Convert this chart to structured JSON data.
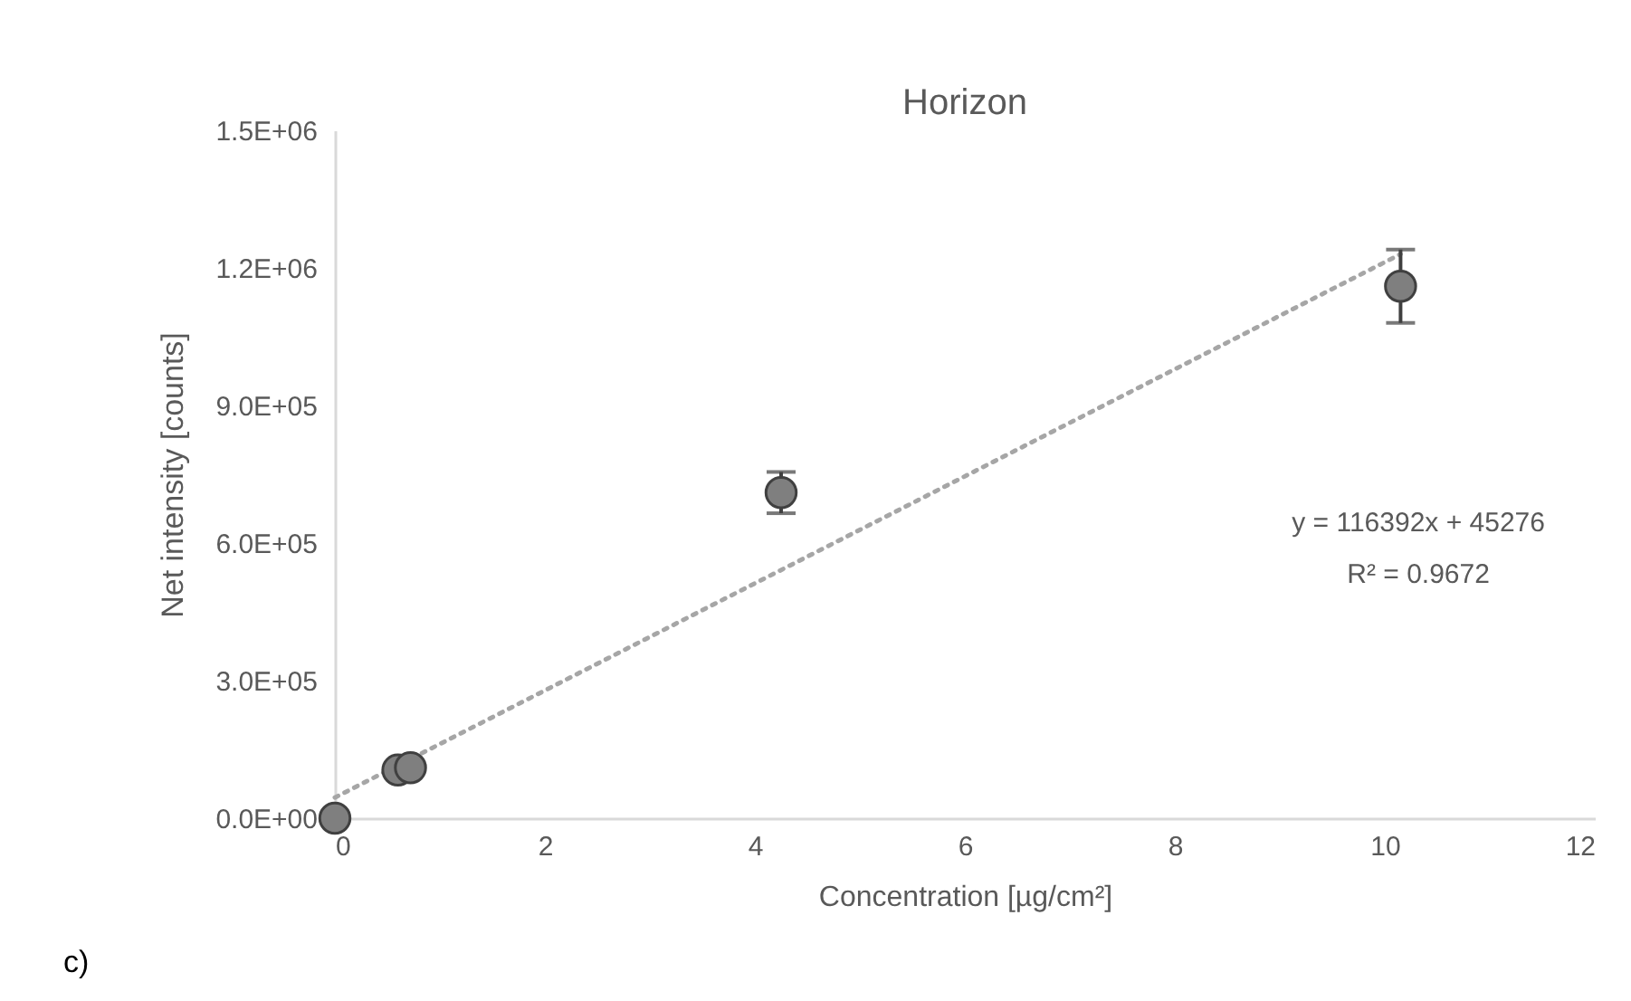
{
  "chart_data": {
    "type": "scatter",
    "title": "Horizon",
    "xlabel": "Concentration [µg/cm²]",
    "ylabel": "Net  intensity [counts]",
    "xlim": [
      0,
      12
    ],
    "xticks": [
      0,
      2,
      4,
      6,
      8,
      10,
      12
    ],
    "ylim": [
      0,
      1500000
    ],
    "yticks": [
      {
        "value": 0,
        "label": "0.0E+00"
      },
      {
        "value": 300000,
        "label": "3.0E+05"
      },
      {
        "value": 600000,
        "label": "6.0E+05"
      },
      {
        "value": 900000,
        "label": "9.0E+05"
      },
      {
        "value": 1200000,
        "label": "1.2E+06"
      },
      {
        "value": 1500000,
        "label": "1.5E+06"
      }
    ],
    "grid": false,
    "series": [
      {
        "type": "scatter",
        "marker": "circle",
        "color": "#7f7f7f",
        "x": [
          0,
          0.6,
          0.72,
          4.25,
          10.15
        ],
        "values": [
          0,
          105000,
          110000,
          710000,
          1160000
        ],
        "errors": [
          null,
          null,
          null,
          45000,
          80000
        ]
      },
      {
        "type": "line",
        "marker": "none",
        "color": "#a6a6a6",
        "line_style": "dotted",
        "x": [
          0,
          10.15
        ],
        "values": [
          45000,
          1230000
        ]
      }
    ],
    "annotations": [
      "y = 116392x + 45276",
      "R² = 0.9672",
      "c)"
    ]
  }
}
